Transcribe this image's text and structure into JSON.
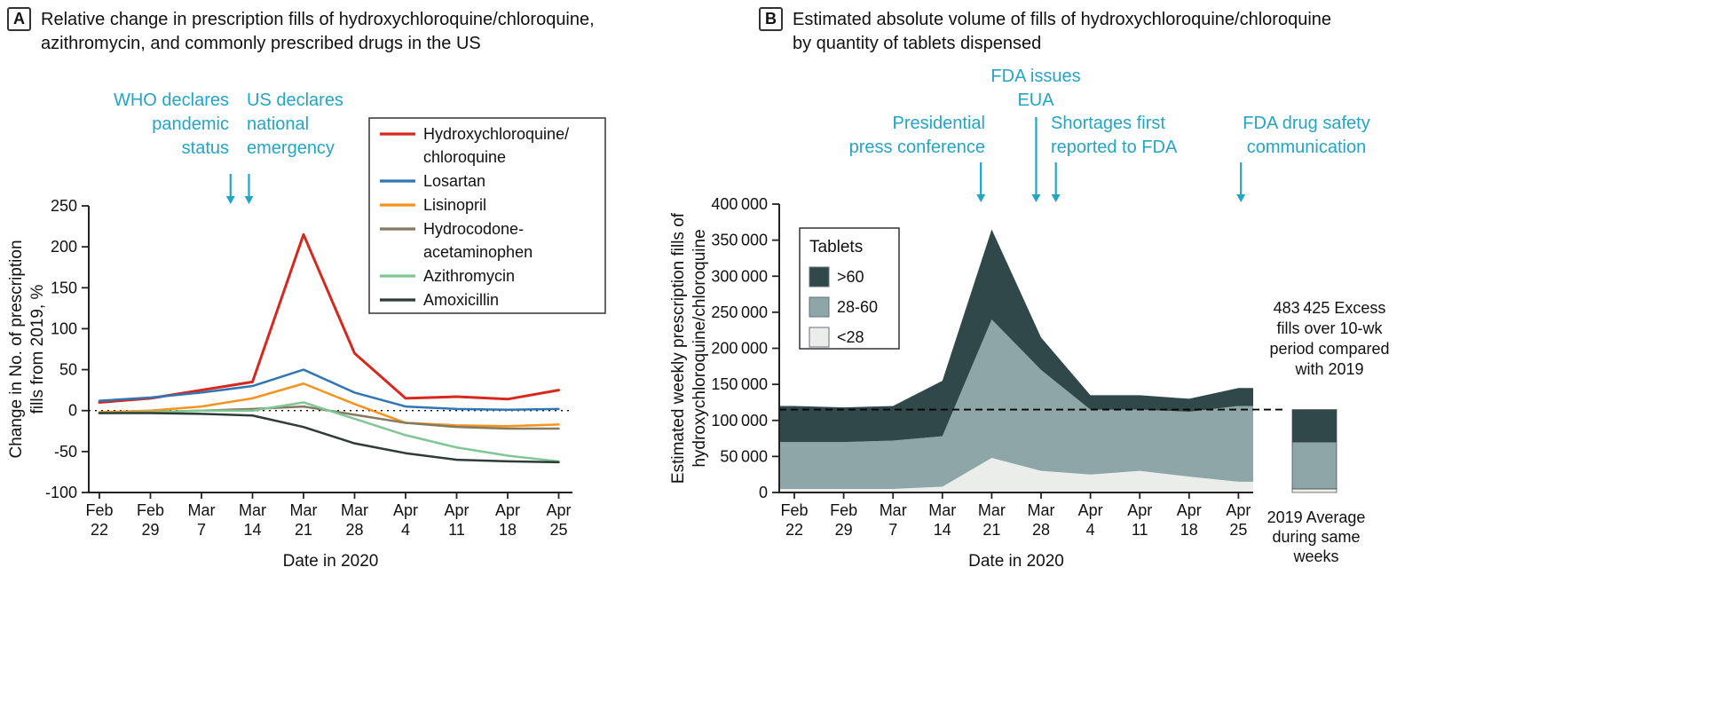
{
  "panels": {
    "a": {
      "label": "A",
      "title": "Relative change in prescription fills of hydroxychloroquine/chloroquine,\nazithromycin, and commonly prescribed drugs in the US"
    },
    "b": {
      "label": "B",
      "title": "Estimated absolute volume of fills of hydroxychloroquine/chloroquine\nby quantity of tablets dispensed"
    }
  },
  "colors": {
    "annotation": "#23a5c6",
    "axis": "#222222",
    "text": "#111111"
  },
  "chart_data": [
    {
      "id": "A",
      "type": "line",
      "title": "Relative change in prescription fills of hydroxychloroquine/chloroquine, azithromycin, and commonly prescribed drugs in the US",
      "xlabel": "Date in 2020",
      "ylabel": "Change in No. of prescription\nfills from 2019, %",
      "ylim": [
        -100,
        250
      ],
      "yticks": [
        -100,
        -50,
        0,
        50,
        100,
        150,
        200,
        250
      ],
      "zero_line": true,
      "grid": false,
      "legend_position": "top-right-box",
      "categories": [
        "Feb 22",
        "Feb 29",
        "Mar 7",
        "Mar 14",
        "Mar 21",
        "Mar 28",
        "Apr 4",
        "Apr 11",
        "Apr 18",
        "Apr 25"
      ],
      "series": [
        {
          "name": "Hydroxychloroquine/\nchloroquine",
          "color": "#d7281d",
          "values": [
            10,
            15,
            25,
            35,
            215,
            70,
            15,
            17,
            14,
            25
          ]
        },
        {
          "name": "Losartan",
          "color": "#2e76b5",
          "values": [
            12,
            16,
            22,
            30,
            50,
            22,
            5,
            2,
            1,
            2
          ]
        },
        {
          "name": "Lisinopril",
          "color": "#f6921e",
          "values": [
            -2,
            0,
            5,
            15,
            33,
            8,
            -15,
            -18,
            -19,
            -17
          ]
        },
        {
          "name": "Hydrocodone-\nacetaminophen",
          "color": "#847a5f",
          "values": [
            -3,
            -2,
            0,
            2,
            5,
            -5,
            -15,
            -20,
            -22,
            -22
          ]
        },
        {
          "name": "Azithromycin",
          "color": "#7fc795",
          "values": [
            -3,
            -2,
            0,
            0,
            10,
            -10,
            -30,
            -45,
            -55,
            -62
          ]
        },
        {
          "name": "Amoxicillin",
          "color": "#2e3c38",
          "values": [
            -3,
            -3,
            -4,
            -6,
            -20,
            -40,
            -52,
            -60,
            -62,
            -63
          ]
        }
      ],
      "annotations": [
        {
          "id": "who",
          "text": "WHO declares\npandemic\nstatus",
          "x": 2.57
        },
        {
          "id": "us",
          "text": "US declares\nnational\nemergency",
          "x": 2.93
        }
      ]
    },
    {
      "id": "B",
      "type": "area",
      "stacked": true,
      "title": "Estimated absolute volume of fills of hydroxychloroquine/chloroquine by quantity of tablets dispensed",
      "xlabel": "Date in 2020",
      "ylabel": "Estimated weekly prescription fills of\nhydroxychloroquine/chloroquine",
      "ylim": [
        0,
        400000
      ],
      "ytick_step": 50000,
      "grid": false,
      "legend_title": "Tablets",
      "categories": [
        "Feb 22",
        "Feb 29",
        "Mar 7",
        "Mar 14",
        "Mar 21",
        "Mar 28",
        "Apr 4",
        "Apr 11",
        "Apr 18",
        "Apr 25"
      ],
      "series": [
        {
          "name": "<28",
          "color": "#eaede9",
          "values": [
            5000,
            5000,
            5000,
            8000,
            48000,
            30000,
            25000,
            30000,
            22000,
            15000
          ]
        },
        {
          "name": "28-60",
          "color": "#8fa6a9",
          "values": [
            65000,
            65000,
            67000,
            70000,
            192000,
            140000,
            90000,
            85000,
            90000,
            105000
          ]
        },
        {
          "name": ">60",
          "color": "#31484b",
          "values": [
            50000,
            48000,
            48000,
            77000,
            125000,
            45000,
            20000,
            20000,
            18000,
            25000
          ]
        }
      ],
      "baseline": {
        "value": 115000,
        "style": "dashed"
      },
      "annotations": [
        {
          "id": "press",
          "text": "Presidential\npress conference",
          "x": 3.78
        },
        {
          "id": "eua",
          "text": "FDA issues\nEUA",
          "x": 4.9
        },
        {
          "id": "shortage",
          "text": "Shortages first\nreported to FDA",
          "x": 5.3
        },
        {
          "id": "safety",
          "text": "FDA drug safety\ncommunication",
          "x": 9.05
        }
      ],
      "side_note": "483 425 Excess\nfills over 10-wk\nperiod compared\nwith 2019",
      "reference_bar": {
        "label": "2019 Average\nduring same\nweeks",
        "segments": [
          {
            "name": "<28",
            "value": 5000
          },
          {
            "name": "28-60",
            "value": 65000
          },
          {
            "name": ">60",
            "value": 45000
          }
        ]
      }
    }
  ]
}
